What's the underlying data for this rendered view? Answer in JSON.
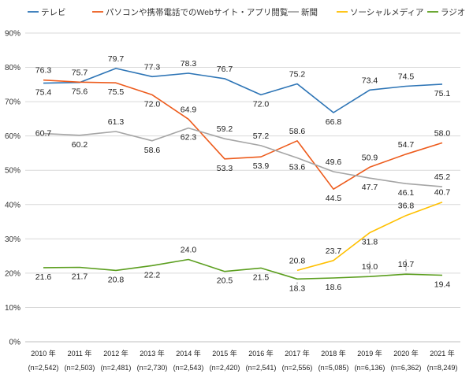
{
  "chart_data": {
    "type": "line",
    "categories": [
      "2010 年",
      "2011 年",
      "2012 年",
      "2013 年",
      "2014 年",
      "2015 年",
      "2016 年",
      "2017 年",
      "2018 年",
      "2019 年",
      "2020 年",
      "2021 年"
    ],
    "category_notes": [
      "(n=2,542)",
      "(n=2,503)",
      "(n=2,481)",
      "(n=2,730)",
      "(n=2,543)",
      "(n=2,420)",
      "(n=2,541)",
      "(n=2,556)",
      "(n=5,085)",
      "(n=6,136)",
      "(n=6,362)",
      "(n=8,249)"
    ],
    "ylim": [
      0,
      90
    ],
    "yticks": [
      0,
      10,
      20,
      30,
      40,
      50,
      60,
      70,
      80,
      90
    ],
    "ytick_labels": [
      "0%",
      "10%",
      "20%",
      "30%",
      "40%",
      "50%",
      "60%",
      "70%",
      "80%",
      "90%"
    ],
    "grid": "horizontal",
    "legend": "top",
    "series": [
      {
        "name": "テレビ",
        "color": "#2E75B6",
        "values": [
          75.4,
          75.6,
          79.7,
          77.3,
          78.3,
          76.7,
          72.0,
          75.2,
          66.8,
          73.4,
          74.5,
          75.1
        ]
      },
      {
        "name": "パソコンや携帯電話でのWebサイト・アプリ閲覧",
        "color": "#ED5B1C",
        "values": [
          76.3,
          75.7,
          75.5,
          72.0,
          64.9,
          53.3,
          53.9,
          58.6,
          44.5,
          50.9,
          54.7,
          58.0
        ]
      },
      {
        "name": "新聞",
        "color": "#A5A5A5",
        "values": [
          60.7,
          60.2,
          61.3,
          58.6,
          62.3,
          59.2,
          57.2,
          53.6,
          49.6,
          47.7,
          46.1,
          45.2
        ]
      },
      {
        "name": "ソーシャルメディア",
        "color": "#FFC000",
        "values": [
          null,
          null,
          null,
          null,
          null,
          null,
          null,
          20.8,
          23.7,
          31.8,
          36.8,
          40.7
        ]
      },
      {
        "name": "ラジオ",
        "color": "#5B9E1E",
        "values": [
          21.6,
          21.7,
          20.8,
          22.2,
          24.0,
          20.5,
          21.5,
          18.3,
          18.6,
          19.0,
          19.7,
          19.4
        ]
      }
    ]
  }
}
